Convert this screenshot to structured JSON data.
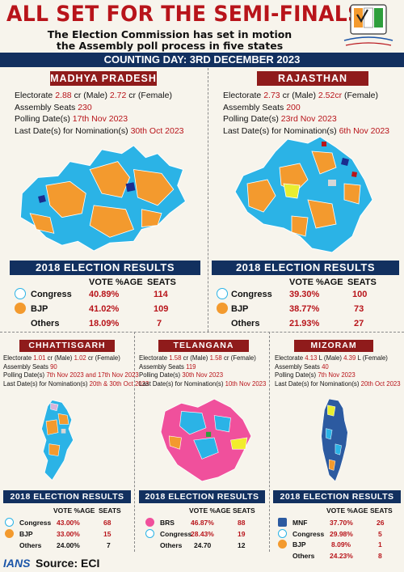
{
  "header": {
    "title": "ALL SET FOR THE SEMI-FINALS",
    "subtitle_line1": "The Election Commission has set in motion",
    "subtitle_line2": "the Assembly poll process in five states",
    "banner": "COUNTING DAY: 3RD DECEMBER 2023"
  },
  "results_heading": "2018 ELECTION RESULTS",
  "col_vote": "VOTE %AGE",
  "col_seats": "SEATS",
  "states": {
    "mp": {
      "name": "MADHYA PRADESH",
      "electorate_label": "Electorate",
      "electorate_male": "2.88",
      "electorate_male_unit": "cr (Male)",
      "electorate_female": "2.72",
      "electorate_female_unit": "cr (Female)",
      "seats_label": "Assembly Seats",
      "seats": "230",
      "polling_label": "Polling Date(s)",
      "polling": "17th Nov 2023",
      "lastdate_label": "Last Date(s) for Nomination(s)",
      "lastdate": "30th Oct 2023",
      "results": [
        {
          "party": "Congress",
          "vote": "40.89%",
          "seats": "114"
        },
        {
          "party": "BJP",
          "vote": "41.02%",
          "seats": "109"
        },
        {
          "party": "Others",
          "vote": "18.09%",
          "seats": "7"
        }
      ]
    },
    "rj": {
      "name": "RAJASTHAN",
      "electorate_label": "Electorate",
      "electorate_male": "2.73",
      "electorate_male_unit": "cr (Male)",
      "electorate_female": "2.52cr",
      "electorate_female_unit": "(Female)",
      "seats_label": "Assembly Seats",
      "seats": "200",
      "polling_label": "Polling Date(s)",
      "polling": "23rd Nov 2023",
      "lastdate_label": "Last Date(s) for Nomination(s)",
      "lastdate": "6th Nov 2023",
      "results": [
        {
          "party": "Congress",
          "vote": "39.30%",
          "seats": "100"
        },
        {
          "party": "BJP",
          "vote": "38.77%",
          "seats": "73"
        },
        {
          "party": "Others",
          "vote": "21.93%",
          "seats": "27"
        }
      ]
    },
    "cg": {
      "name": "CHHATTISGARH",
      "electorate_label": "Electorate",
      "electorate_male": "1.01",
      "electorate_male_unit": "cr (Male)",
      "electorate_female": "1.02",
      "electorate_female_unit": "cr (Female)",
      "seats_label": "Assembly Seats",
      "seats": "90",
      "polling_label": "Polling Date(s)",
      "polling": "7th Nov 2023 and 17th Nov 2023",
      "lastdate_label": "Last Date(s) for Nomination(s)",
      "lastdate": "20th & 30th Oct 2023",
      "results": [
        {
          "party": "Congress",
          "vote": "43.00%",
          "seats": "68"
        },
        {
          "party": "BJP",
          "vote": "33.00%",
          "seats": "15"
        },
        {
          "party": "Others",
          "vote": "24.00%",
          "seats": "7"
        }
      ]
    },
    "tg": {
      "name": "TELANGANA",
      "electorate_label": "Electorate",
      "electorate_male": "1.58",
      "electorate_male_unit": "cr (Male)",
      "electorate_female": "1.58",
      "electorate_female_unit": "cr (Female)",
      "seats_label": "Assembly Seats",
      "seats": "119",
      "polling_label": "Polling Date(s)",
      "polling": "30th Nov 2023",
      "lastdate_label": "Last Date(s) for Nomination(s)",
      "lastdate": "10th Nov 2023",
      "results": [
        {
          "party": "BRS",
          "vote": "46.87%",
          "seats": "88"
        },
        {
          "party": "Congress",
          "vote": "28.43%",
          "seats": "19"
        },
        {
          "party": "Others",
          "vote": "24.70",
          "seats": "12"
        }
      ]
    },
    "mz": {
      "name": "MIZORAM",
      "electorate_label": "Electorate",
      "electorate_male": "4.13",
      "electorate_male_unit": "L (Male)",
      "electorate_female": "4.39",
      "electorate_female_unit": "L (Female)",
      "seats_label": "Assembly Seats",
      "seats": "40",
      "polling_label": "Polling Date(s)",
      "polling": "7th Nov 2023",
      "lastdate_label": "Last Date(s) for Nomination(s)",
      "lastdate": "20th Oct 2023",
      "results": [
        {
          "party": "MNF",
          "vote": "37.70%",
          "seats": "26"
        },
        {
          "party": "Congress",
          "vote": "29.98%",
          "seats": "5"
        },
        {
          "party": "BJP",
          "vote": "8.09%",
          "seats": "1"
        },
        {
          "party": "Others",
          "vote": "24.23%",
          "seats": "8"
        }
      ]
    }
  },
  "footer": {
    "agency": "IANS",
    "source": "Source: ECI"
  },
  "colors": {
    "congress": "#2bb3e6",
    "bjp": "#f39a2e",
    "brs": "#f0509c",
    "mnf": "#2c5aa0",
    "accent_red": "#b8141a",
    "navy": "#12305f",
    "state_tag": "#8f1b1b"
  }
}
